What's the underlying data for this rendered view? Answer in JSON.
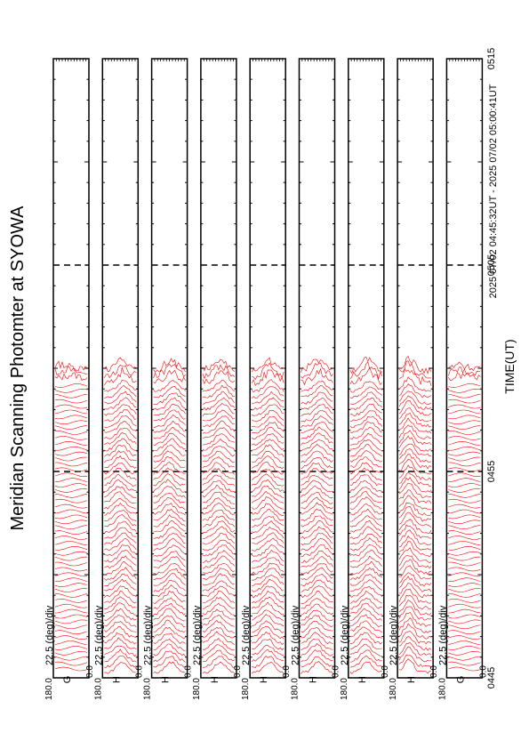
{
  "chart_data": {
    "type": "line",
    "title": "Meridian Scanning Photomter at SYOWA",
    "time_range_label": "2025 07/02 04:45:32UT - 2025 07/02 05:00:41UT",
    "xlabel": "TIME(UT)",
    "x_ticks": [
      "0445",
      "0455",
      "0505",
      "0515"
    ],
    "x_range_ut": [
      "04:45",
      "05:15"
    ],
    "data_end_ut": "04:59:40",
    "dashed_guides_ut": [
      "04:55",
      "05:05"
    ],
    "trace_color": "#ff0000",
    "panels": [
      {
        "name": "panel-1",
        "channel_label": "G",
        "scale_label": "22.5 (deg)/div",
        "y_top_label": "180.0",
        "y_bottom_label": "0.0",
        "style": "dense"
      },
      {
        "name": "panel-2",
        "channel_label": "H",
        "scale_label": "22.5 (deg)/div",
        "y_top_label": "180.0",
        "y_bottom_label": "0.0",
        "style": "profile"
      },
      {
        "name": "panel-3",
        "channel_label": "H",
        "scale_label": "22.5 (deg)/div",
        "y_top_label": "180.0",
        "y_bottom_label": "0.0",
        "style": "profile"
      },
      {
        "name": "panel-4",
        "channel_label": "H",
        "scale_label": "22.5 (deg)/div",
        "y_top_label": "180.0",
        "y_bottom_label": "0.0",
        "style": "profile"
      },
      {
        "name": "panel-5",
        "channel_label": "H",
        "scale_label": "22.5 (deg)/div",
        "y_top_label": "180.0",
        "y_bottom_label": "0.0",
        "style": "profile"
      },
      {
        "name": "panel-6",
        "channel_label": "H",
        "scale_label": "22.5 (deg)/div",
        "y_top_label": "180.0",
        "y_bottom_label": "0.0",
        "style": "profile"
      },
      {
        "name": "panel-7",
        "channel_label": "H",
        "scale_label": "22.5 (deg)/div",
        "y_top_label": "180.0",
        "y_bottom_label": "0.0",
        "style": "profile"
      },
      {
        "name": "panel-8",
        "channel_label": "H",
        "scale_label": "22.5 (deg)/div",
        "y_top_label": "180.0",
        "y_bottom_label": "0.0",
        "style": "steep"
      },
      {
        "name": "panel-9",
        "channel_label": "G",
        "scale_label": "22.5 (deg)/div",
        "y_top_label": "180.0",
        "y_bottom_label": "0.0",
        "style": "dense"
      }
    ]
  }
}
